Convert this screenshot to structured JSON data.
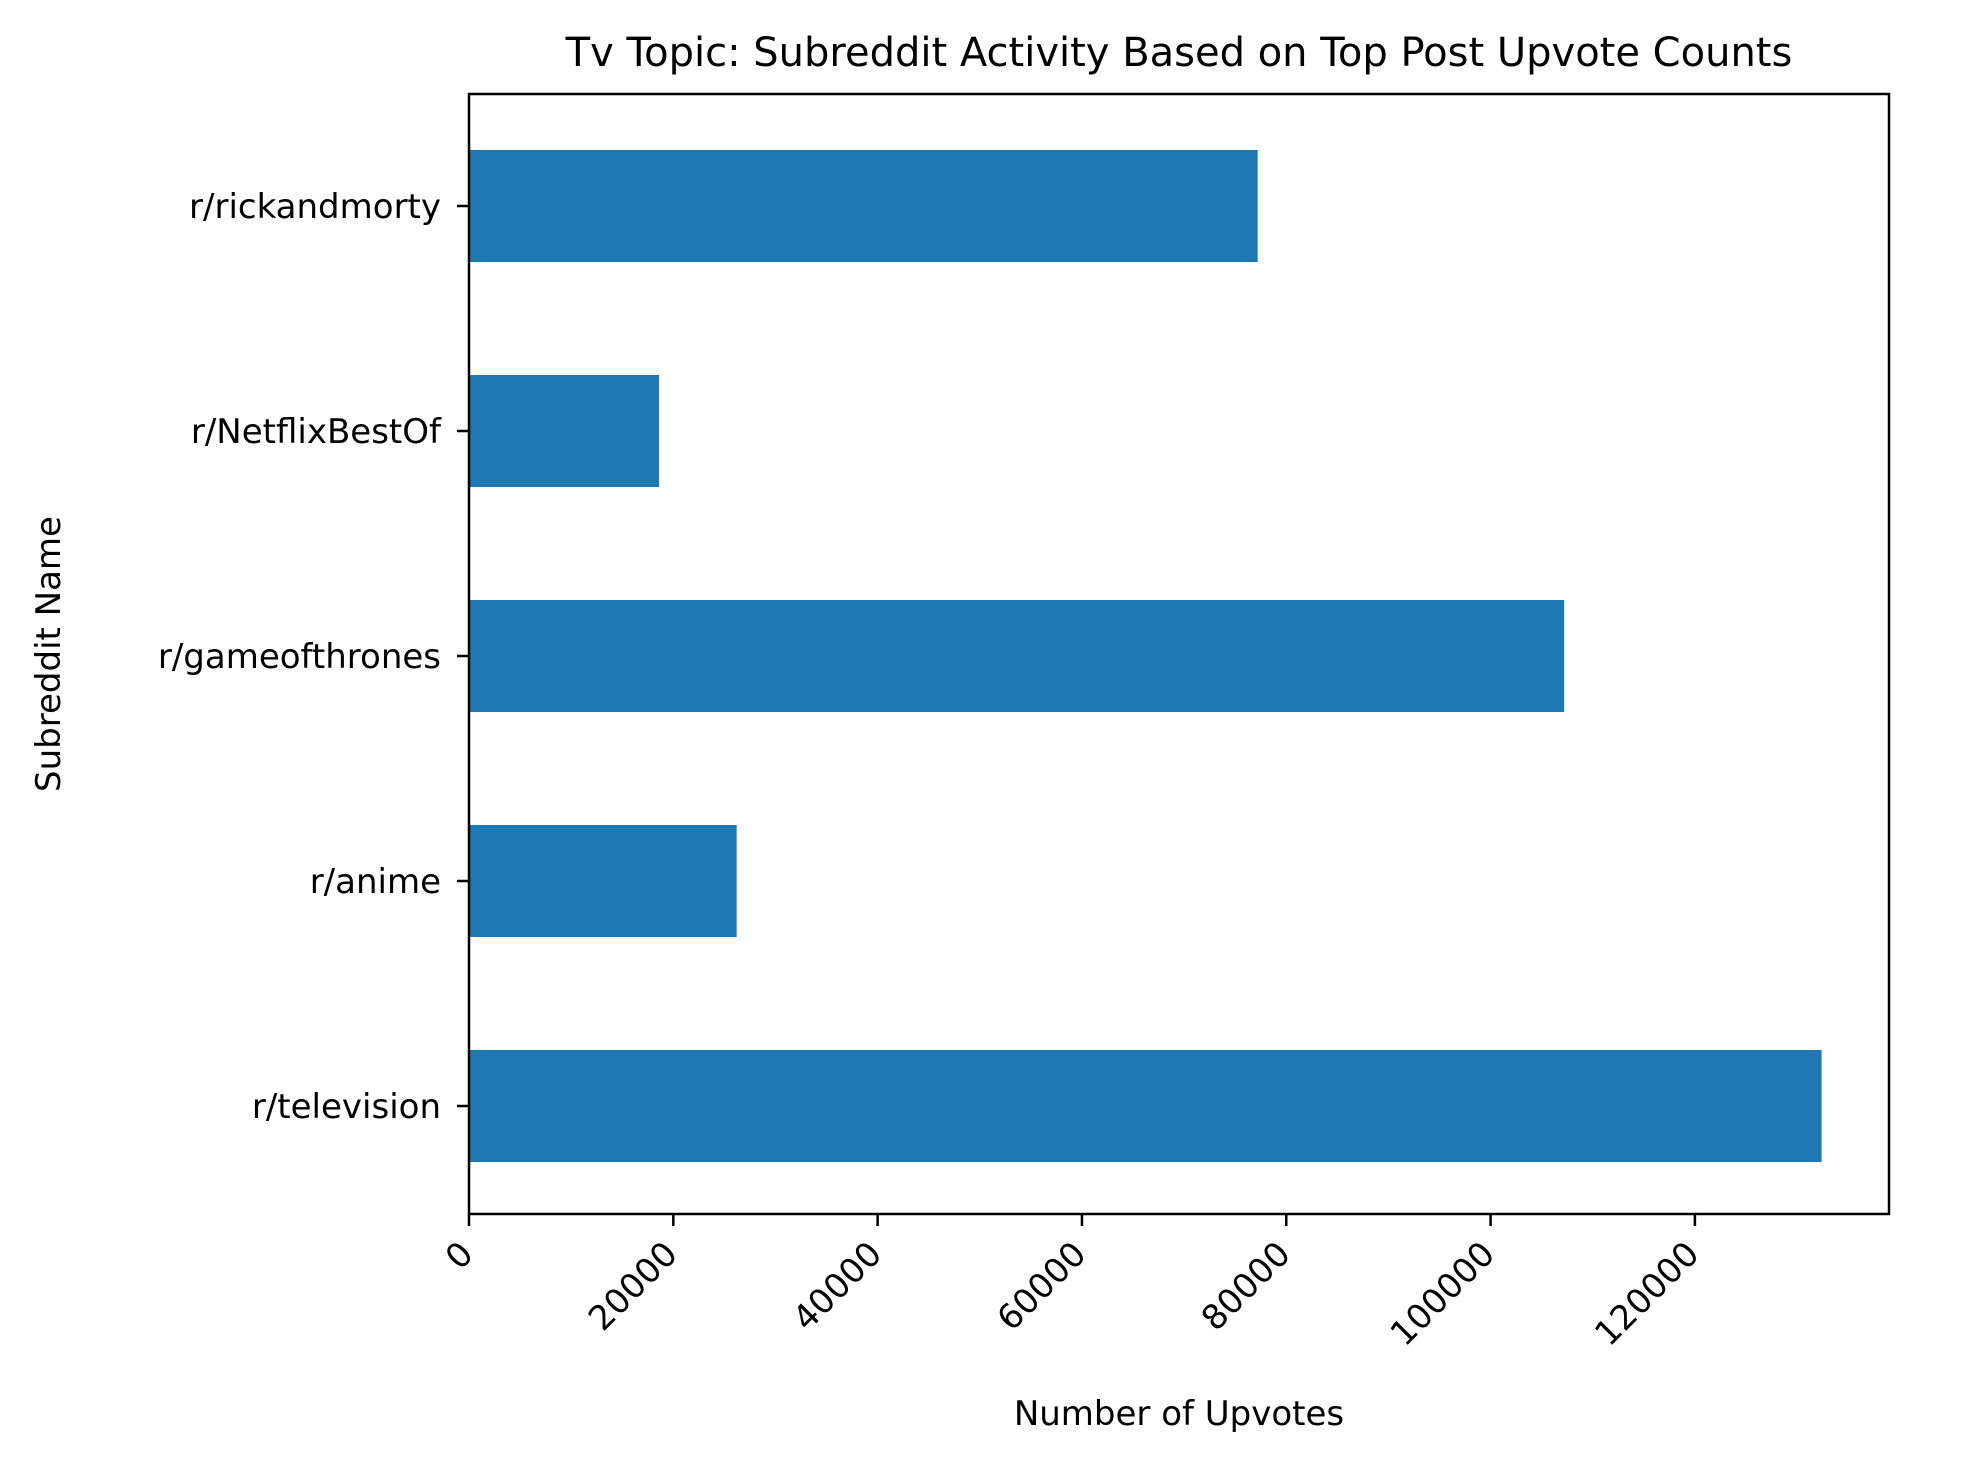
{
  "chart_data": {
    "type": "bar",
    "orientation": "horizontal",
    "title": "Tv Topic: Subreddit Activity Based on Top Post Upvote Counts",
    "xlabel": "Number of Upvotes",
    "ylabel": "Subreddit Name",
    "categories": [
      "r/television",
      "r/anime",
      "r/gameofthrones",
      "r/NetflixBestOf",
      "r/rickandmorty"
    ],
    "values": [
      132400,
      26200,
      107200,
      18600,
      77200
    ],
    "xticks": [
      0,
      20000,
      40000,
      60000,
      80000,
      100000,
      120000
    ],
    "xlim": [
      0,
      139000
    ],
    "bar_color": "#1f77b4",
    "grid": false,
    "legend": "none"
  }
}
